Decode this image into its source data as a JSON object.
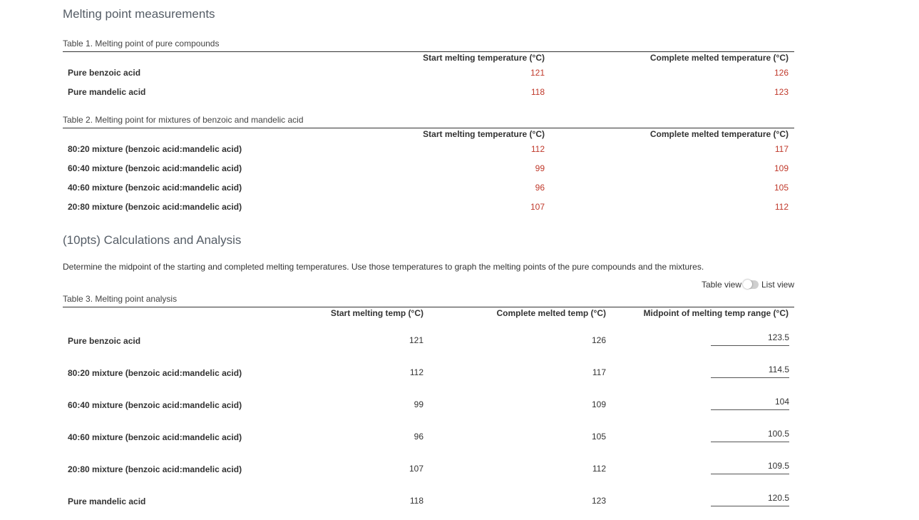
{
  "section1_title": "Melting point measurements",
  "table1": {
    "caption": "Table 1. Melting point of pure compounds",
    "headers": [
      "Start melting temperature (°C)",
      "Complete melted temperature (°C)"
    ],
    "rows": [
      {
        "label": "Pure benzoic acid",
        "start": "121",
        "complete": "126"
      },
      {
        "label": "Pure mandelic acid",
        "start": "118",
        "complete": "123"
      }
    ]
  },
  "table2": {
    "caption": "Table 2. Melting point for mixtures of benzoic and mandelic acid",
    "headers": [
      "Start melting temperature (°C)",
      "Complete melted temperature (°C)"
    ],
    "rows": [
      {
        "label": "80:20 mixture (benzoic acid:mandelic acid)",
        "start": "112",
        "complete": "117"
      },
      {
        "label": "60:40 mixture (benzoic acid:mandelic acid)",
        "start": "99",
        "complete": "109"
      },
      {
        "label": "40:60 mixture (benzoic acid:mandelic acid)",
        "start": "96",
        "complete": "105"
      },
      {
        "label": "20:80 mixture (benzoic acid:mandelic acid)",
        "start": "107",
        "complete": "112"
      }
    ]
  },
  "section2_title": "(10pts) Calculations and Analysis",
  "instructions": "Determine the midpoint of the starting and completed melting temperatures. Use those temperatures to graph the melting points of the pure compounds and the mixtures.",
  "view_toggle": {
    "left_label": "Table view",
    "right_label": "List view",
    "state": "table"
  },
  "table3": {
    "caption": "Table 3. Melting point analysis",
    "headers": [
      "Start melting temp (°C)",
      "Complete melted temp (°C)",
      "Midpoint of melting temp range (°C)"
    ],
    "rows": [
      {
        "label": "Pure benzoic acid",
        "start": "121",
        "complete": "126",
        "midpoint": "123.5"
      },
      {
        "label": "80:20 mixture (benzoic acid:mandelic acid)",
        "start": "112",
        "complete": "117",
        "midpoint": "114.5"
      },
      {
        "label": "60:40 mixture (benzoic acid:mandelic acid)",
        "start": "99",
        "complete": "109",
        "midpoint": "104"
      },
      {
        "label": "40:60 mixture (benzoic acid:mandelic acid)",
        "start": "96",
        "complete": "105",
        "midpoint": "100.5"
      },
      {
        "label": "20:80 mixture (benzoic acid:mandelic acid)",
        "start": "107",
        "complete": "112",
        "midpoint": "109.5"
      },
      {
        "label": "Pure mandelic acid",
        "start": "118",
        "complete": "123",
        "midpoint": "120.5"
      }
    ]
  },
  "colors": {
    "value_red": "#c0392b",
    "text": "#333333",
    "heading": "#555d66"
  }
}
